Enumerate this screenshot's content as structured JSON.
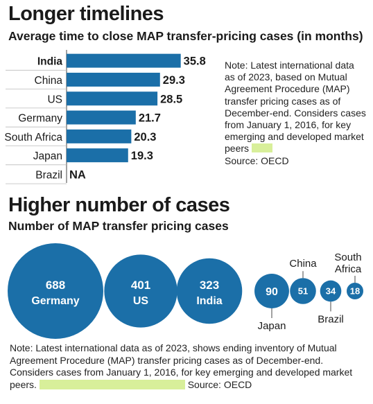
{
  "chart_data": [
    {
      "type": "bar",
      "orientation": "horizontal",
      "title": "Longer timelines",
      "subtitle": "Average time to close MAP transfer-pricing cases (in months)",
      "categories": [
        "India",
        "China",
        "US",
        "Germany",
        "South Africa",
        "Japan",
        "Brazil"
      ],
      "values": [
        35.8,
        29.3,
        28.5,
        21.7,
        20.3,
        19.3,
        null
      ],
      "value_labels": [
        "35.8",
        "29.3",
        "28.5",
        "21.7",
        "20.3",
        "19.3",
        "NA"
      ],
      "bold_category": "India",
      "bar_color": "#1b6fa8",
      "note": "Note: Latest international data as of 2023, based on Mutual Agreement Procedure (MAP) transfer pricing cases as of December-end. Considers cases from January 1, 2016, for key emerging and developed market peers",
      "source": "Source: OECD"
    },
    {
      "type": "bubble",
      "title": "Higher number of cases",
      "subtitle": "Number of MAP transfer pricing cases",
      "categories": [
        "Germany",
        "US",
        "India",
        "Japan",
        "China",
        "Brazil",
        "South Africa"
      ],
      "values": [
        688,
        401,
        323,
        90,
        51,
        34,
        18
      ],
      "label_position": [
        "inside",
        "inside",
        "inside",
        "below",
        "above",
        "below",
        "above"
      ],
      "bubble_color": "#1b6fa8",
      "note": "Note: Latest international data as of 2023, shows ending inventory of Mutual Agreement Procedure (MAP) transfer pricing cases as of December-end. Considers cases from January 1, 2016, for key emerging and developed market peers.",
      "source": "Source: OECD"
    }
  ],
  "highlight_color": "#d8ef9a"
}
